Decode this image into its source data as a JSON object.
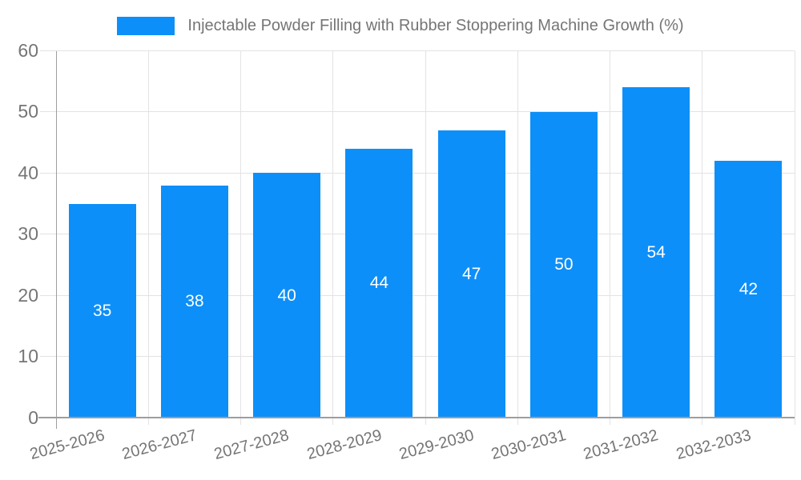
{
  "legend": {
    "label": "Injectable Powder Filling with Rubber Stoppering Machine Growth (%)"
  },
  "chart_data": {
    "type": "bar",
    "title": "Injectable Powder Filling with Rubber Stoppering Machine Growth (%)",
    "categories": [
      "2025-2026",
      "2026-2027",
      "2027-2028",
      "2028-2029",
      "2029-2030",
      "2030-2031",
      "2031-2032",
      "2032-2033"
    ],
    "values": [
      35,
      38,
      40,
      44,
      47,
      50,
      54,
      42
    ],
    "xlabel": "",
    "ylabel": "",
    "ylim": [
      0,
      60
    ],
    "yticks": [
      0,
      10,
      20,
      30,
      40,
      50,
      60
    ],
    "grid": true,
    "legend_position": "top",
    "value_labels": "inside-center"
  },
  "colors": {
    "bar": "#0d8ff9",
    "grid": "#e3e3e3",
    "axis": "#9e9e9e",
    "tick_text": "#757575",
    "value_text": "#ffffff",
    "background": "#ffffff"
  }
}
